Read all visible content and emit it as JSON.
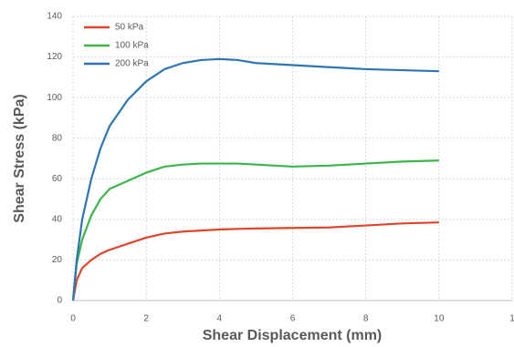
{
  "chart_data": {
    "type": "line",
    "x_label": "Shear Displacement (mm)",
    "y_label": "Shear Stress (kPa)",
    "x": [
      0,
      0.1,
      0.25,
      0.5,
      0.75,
      1,
      1.5,
      2,
      2.5,
      3,
      3.5,
      4,
      4.5,
      5,
      6,
      7,
      8,
      9,
      10
    ],
    "series": [
      {
        "name": "50 kPa",
        "color": "#e0452b",
        "values": [
          0,
          10,
          16,
          20,
          23,
          25,
          28,
          31,
          33,
          34,
          34.5,
          35,
          35.3,
          35.5,
          35.8,
          36,
          37,
          38,
          38.5
        ]
      },
      {
        "name": "100 kPa",
        "color": "#3ab54a",
        "values": [
          0,
          18,
          30,
          42,
          50,
          55,
          59,
          63,
          66,
          67,
          67.5,
          67.5,
          67.5,
          67,
          66,
          66.5,
          67.5,
          68.5,
          69
        ]
      },
      {
        "name": "200 kPa",
        "color": "#2e75b6",
        "values": [
          0,
          20,
          40,
          60,
          75,
          86,
          99,
          108,
          114,
          117,
          118.5,
          119,
          118.5,
          117,
          116,
          115,
          114,
          113.5,
          113
        ]
      }
    ],
    "xlim": [
      0,
      12
    ],
    "xticks": [
      0,
      2,
      4,
      6,
      8,
      10,
      {
        "value": 12,
        "label": "1"
      }
    ],
    "ylim": [
      0,
      140
    ],
    "yticks": [
      0,
      20,
      40,
      60,
      80,
      100,
      120,
      140
    ],
    "grid": true,
    "legend": "top-left"
  }
}
